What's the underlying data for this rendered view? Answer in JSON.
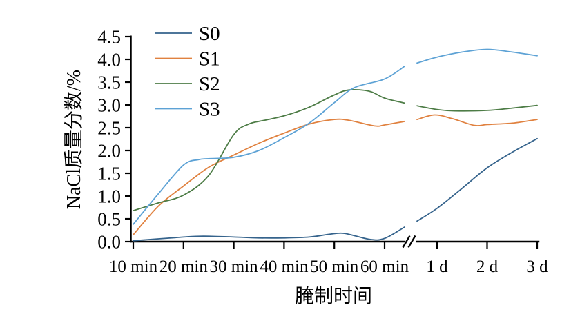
{
  "figure": {
    "background": "#ffffff",
    "axis_color": "#000000"
  },
  "chart_data": {
    "type": "line",
    "title": "",
    "xlabel": "腌制时间",
    "ylabel": "NaCl质量分数/%",
    "ylim": [
      0.0,
      4.5
    ],
    "grid": false,
    "legend_position": "top-left-inside",
    "axis_break": true,
    "y_tick_labels": [
      "0.0",
      "0.5",
      "1.0",
      "1.5",
      "2.0",
      "2.5",
      "3.0",
      "3.5",
      "4.0",
      "4.5"
    ],
    "y_tick_values": [
      0.0,
      0.5,
      1.0,
      1.5,
      2.0,
      2.5,
      3.0,
      3.5,
      4.0,
      4.5
    ],
    "x_ticks_min": [
      10,
      20,
      30,
      40,
      50,
      60
    ],
    "x_tick_labels_min": [
      "10 min",
      "20 min",
      "30 min",
      "40 min",
      "50 min",
      "60 min"
    ],
    "x_ticks_day": [
      1,
      2,
      3
    ],
    "x_tick_labels_day": [
      "1 d",
      "2 d",
      "3 d"
    ],
    "series": [
      {
        "name": "S0",
        "color": "#35638c",
        "points_min": [
          [
            10,
            0.02
          ],
          [
            15,
            0.06
          ],
          [
            20,
            0.1
          ],
          [
            24,
            0.12
          ],
          [
            30,
            0.1
          ],
          [
            35,
            0.08
          ],
          [
            40,
            0.08
          ],
          [
            45,
            0.1
          ],
          [
            49,
            0.16
          ],
          [
            52,
            0.18
          ],
          [
            57,
            0.05
          ],
          [
            60,
            0.07
          ],
          [
            64,
            0.32
          ]
        ],
        "points_day": [
          [
            0.6,
            0.45
          ],
          [
            1,
            0.73
          ],
          [
            1.5,
            1.17
          ],
          [
            2,
            1.62
          ],
          [
            2.5,
            1.96
          ],
          [
            3,
            2.26
          ]
        ]
      },
      {
        "name": "S1",
        "color": "#e0813f",
        "points_min": [
          [
            10,
            0.15
          ],
          [
            15,
            0.78
          ],
          [
            20,
            1.22
          ],
          [
            25,
            1.63
          ],
          [
            30,
            1.9
          ],
          [
            35,
            2.16
          ],
          [
            40,
            2.38
          ],
          [
            45,
            2.58
          ],
          [
            50,
            2.68
          ],
          [
            53,
            2.66
          ],
          [
            58,
            2.54
          ],
          [
            60,
            2.56
          ],
          [
            64,
            2.64
          ]
        ],
        "points_day": [
          [
            0.6,
            2.68
          ],
          [
            0.95,
            2.78
          ],
          [
            1.3,
            2.7
          ],
          [
            1.75,
            2.55
          ],
          [
            2,
            2.57
          ],
          [
            2.5,
            2.6
          ],
          [
            3,
            2.68
          ]
        ]
      },
      {
        "name": "S2",
        "color": "#4d7c46",
        "points_min": [
          [
            10,
            0.68
          ],
          [
            15,
            0.85
          ],
          [
            20,
            1.02
          ],
          [
            25,
            1.45
          ],
          [
            30,
            2.35
          ],
          [
            33,
            2.58
          ],
          [
            36,
            2.66
          ],
          [
            40,
            2.76
          ],
          [
            45,
            2.95
          ],
          [
            50,
            3.22
          ],
          [
            53,
            3.33
          ],
          [
            57,
            3.3
          ],
          [
            60,
            3.15
          ],
          [
            64,
            3.04
          ]
        ],
        "points_day": [
          [
            0.6,
            2.98
          ],
          [
            1,
            2.9
          ],
          [
            1.35,
            2.87
          ],
          [
            2,
            2.88
          ],
          [
            2.5,
            2.93
          ],
          [
            3,
            2.99
          ]
        ]
      },
      {
        "name": "S3",
        "color": "#5da2d5",
        "points_min": [
          [
            10,
            0.38
          ],
          [
            15,
            1.05
          ],
          [
            20,
            1.68
          ],
          [
            23,
            1.8
          ],
          [
            25,
            1.82
          ],
          [
            30,
            1.85
          ],
          [
            35,
            2.0
          ],
          [
            40,
            2.28
          ],
          [
            45,
            2.6
          ],
          [
            50,
            3.05
          ],
          [
            54,
            3.38
          ],
          [
            60,
            3.57
          ],
          [
            64,
            3.85
          ]
        ],
        "points_day": [
          [
            0.6,
            3.92
          ],
          [
            1,
            4.05
          ],
          [
            1.5,
            4.16
          ],
          [
            2,
            4.22
          ],
          [
            2.5,
            4.16
          ],
          [
            3,
            4.08
          ]
        ]
      }
    ]
  }
}
